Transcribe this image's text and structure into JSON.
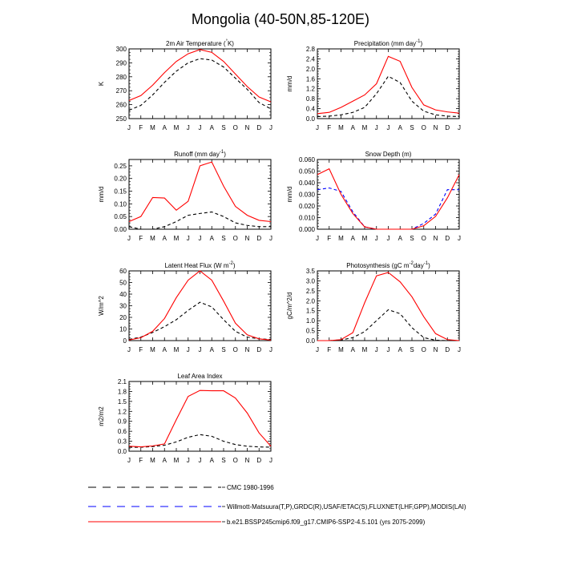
{
  "title": "Mongolia (40-50N,85-120E)",
  "months": [
    "J",
    "F",
    "M",
    "A",
    "M",
    "J",
    "J",
    "A",
    "S",
    "O",
    "N",
    "D",
    "J"
  ],
  "colors": {
    "cmc": "#000000",
    "obs": "#0000ff",
    "model": "#ff0000"
  },
  "legend": [
    {
      "key": "cmc",
      "label": "CMC 1980-1996",
      "style": "dashed"
    },
    {
      "key": "obs",
      "label": "Willmott-Matsuura(T,P),GRDC(R),USAF/ETAC(S),FLUXNET(LHF,GPP),MODIS(LAI)",
      "style": "dashed"
    },
    {
      "key": "model",
      "label": "b.e21.BSSP245cmip6.f09_g17.CMIP6-SSP2-4.5.101 (yrs 2075-2099)",
      "style": "solid"
    }
  ],
  "chart_data": [
    {
      "type": "line",
      "title": "2m Air Temperature (°K)",
      "ylabel": "K",
      "ylim": [
        250,
        300
      ],
      "yticks": [
        250,
        260,
        270,
        280,
        290,
        300
      ],
      "ytick_labels": [
        "250",
        "260",
        "270",
        "280",
        "290",
        "300"
      ],
      "series": [
        {
          "name": "CMC 1980-1996",
          "key": "cmc",
          "values": [
            256,
            259.5,
            267,
            276,
            284,
            290,
            293,
            292,
            287,
            279,
            271,
            261.5,
            257
          ]
        },
        {
          "name": "b.e21.BSSP245cmip6.f09_g17.CMIP6-SSP2-4.5.101 (yrs 2075-2099)",
          "key": "model",
          "values": [
            263,
            266.5,
            274,
            283,
            291,
            296.5,
            299.5,
            297.5,
            291,
            282,
            273,
            265.5,
            262
          ]
        }
      ]
    },
    {
      "type": "line",
      "title": "Precipitation (mm day-1)",
      "ylabel": "mm/d",
      "ylim": [
        0,
        2.8
      ],
      "yticks": [
        0,
        0.4,
        0.8,
        1.2,
        1.6,
        2.0,
        2.4,
        2.8
      ],
      "ytick_labels": [
        "0.0",
        "0.4",
        "0.8",
        "1.2",
        "1.6",
        "2.0",
        "2.4",
        "2.8"
      ],
      "series": [
        {
          "name": "CMC 1980-1996",
          "key": "cmc",
          "values": [
            0.08,
            0.1,
            0.15,
            0.25,
            0.45,
            1.0,
            1.7,
            1.45,
            0.7,
            0.3,
            0.15,
            0.1,
            0.08
          ]
        },
        {
          "name": "b.e21.BSSP245cmip6.f09_g17.CMIP6-SSP2-4.5.101 (yrs 2075-2099)",
          "key": "model",
          "values": [
            0.2,
            0.25,
            0.45,
            0.7,
            0.95,
            1.4,
            2.5,
            2.3,
            1.25,
            0.55,
            0.35,
            0.27,
            0.22
          ]
        }
      ]
    },
    {
      "type": "line",
      "title": "Runoff (mm day-1)",
      "ylabel": "mm/d",
      "ylim": [
        0,
        0.275
      ],
      "yticks": [
        0,
        0.05,
        0.1,
        0.15,
        0.2,
        0.25
      ],
      "ytick_labels": [
        "0.00",
        "0.05",
        "0.10",
        "0.15",
        "0.20",
        "0.25"
      ],
      "series": [
        {
          "name": "CMC 1980-1996",
          "key": "cmc",
          "values": [
            0.01,
            0.0,
            0.0,
            0.01,
            0.03,
            0.055,
            0.062,
            0.068,
            0.05,
            0.025,
            0.015,
            0.01,
            0.01
          ]
        },
        {
          "name": "b.e21.BSSP245cmip6.f09_g17.CMIP6-SSP2-4.5.101 (yrs 2075-2099)",
          "key": "model",
          "values": [
            0.03,
            0.05,
            0.125,
            0.123,
            0.075,
            0.11,
            0.25,
            0.265,
            0.17,
            0.09,
            0.055,
            0.035,
            0.03
          ]
        }
      ]
    },
    {
      "type": "line",
      "title": "Snow Depth (m)",
      "ylabel": "mm/d",
      "ylim": [
        0,
        0.06
      ],
      "yticks": [
        0,
        0.01,
        0.02,
        0.03,
        0.04,
        0.05,
        0.06
      ],
      "ytick_labels": [
        "0.000",
        "0.010",
        "0.020",
        "0.030",
        "0.040",
        "0.050",
        "0.060"
      ],
      "series": [
        {
          "name": "Willmott-Matsuura(T,P),GRDC(R),USAF/ETAC(S),FLUXNET(LHF,GPP),MODIS(LAI)",
          "key": "obs",
          "values": [
            0.034,
            0.0355,
            0.0325,
            0.015,
            0.002,
            0.0,
            0.0,
            0.0,
            0.0,
            0.005,
            0.013,
            0.034,
            0.034
          ]
        },
        {
          "name": "b.e21.BSSP245cmip6.f09_g17.CMIP6-SSP2-4.5.101 (yrs 2075-2099)",
          "key": "model",
          "values": [
            0.047,
            0.052,
            0.03,
            0.0135,
            0.002,
            0.0,
            0.0,
            0.0,
            0.0,
            0.003,
            0.011,
            0.027,
            0.047
          ]
        }
      ]
    },
    {
      "type": "line",
      "title": "Latent Heat Flux (W m-2)",
      "ylabel": "W/m^2",
      "ylim": [
        0,
        60
      ],
      "yticks": [
        0,
        10,
        20,
        30,
        40,
        50,
        60
      ],
      "ytick_labels": [
        "0",
        "10",
        "20",
        "30",
        "40",
        "50",
        "60"
      ],
      "series": [
        {
          "name": "CMC 1980-1996",
          "key": "cmc",
          "values": [
            1,
            3,
            7,
            12,
            18,
            26,
            33,
            29,
            18,
            8,
            3,
            1.5,
            1
          ]
        },
        {
          "name": "b.e21.BSSP245cmip6.f09_g17.CMIP6-SSP2-4.5.101 (yrs 2075-2099)",
          "key": "model",
          "values": [
            0.5,
            2.5,
            8,
            19,
            37,
            52,
            60,
            52,
            34,
            15,
            5,
            1.5,
            0.5
          ]
        }
      ]
    },
    {
      "type": "line",
      "title": "Photosynthesis (gC m-2day-1)",
      "ylabel": "gC/m^2/d",
      "ylim": [
        0,
        3.5
      ],
      "yticks": [
        0,
        0.5,
        1.0,
        1.5,
        2.0,
        2.5,
        3.0,
        3.5
      ],
      "ytick_labels": [
        "0.0",
        "0.5",
        "1.0",
        "1.5",
        "2.0",
        "2.5",
        "3.0",
        "3.5"
      ],
      "series": [
        {
          "name": "CMC 1980-1996",
          "key": "cmc",
          "values": [
            0.0,
            0.0,
            0.03,
            0.15,
            0.45,
            1.0,
            1.55,
            1.35,
            0.65,
            0.15,
            0.02,
            0.0,
            0.0
          ]
        },
        {
          "name": "b.e21.BSSP245cmip6.f09_g17.CMIP6-SSP2-4.5.101 (yrs 2075-2099)",
          "key": "model",
          "values": [
            0.0,
            0.0,
            0.05,
            0.4,
            1.9,
            3.25,
            3.42,
            2.95,
            2.2,
            1.2,
            0.35,
            0.05,
            0.0
          ]
        }
      ]
    },
    {
      "type": "line",
      "title": "Leaf Area Index",
      "ylabel": "m2/m2",
      "ylim": [
        0,
        2.1
      ],
      "yticks": [
        0,
        0.3,
        0.6,
        0.9,
        1.2,
        1.5,
        1.8,
        2.1
      ],
      "ytick_labels": [
        "0.0",
        "0.3",
        "0.6",
        "0.9",
        "1.2",
        "1.5",
        "1.8",
        "2.1"
      ],
      "series": [
        {
          "name": "CMC 1980-1996",
          "key": "cmc",
          "values": [
            0.12,
            0.12,
            0.14,
            0.18,
            0.28,
            0.42,
            0.5,
            0.45,
            0.3,
            0.2,
            0.15,
            0.13,
            0.12
          ]
        },
        {
          "name": "b.e21.BSSP245cmip6.f09_g17.CMIP6-SSP2-4.5.101 (yrs 2075-2099)",
          "key": "model",
          "values": [
            0.15,
            0.13,
            0.16,
            0.22,
            0.95,
            1.65,
            1.83,
            1.82,
            1.82,
            1.6,
            1.15,
            0.55,
            0.15
          ]
        }
      ]
    }
  ]
}
